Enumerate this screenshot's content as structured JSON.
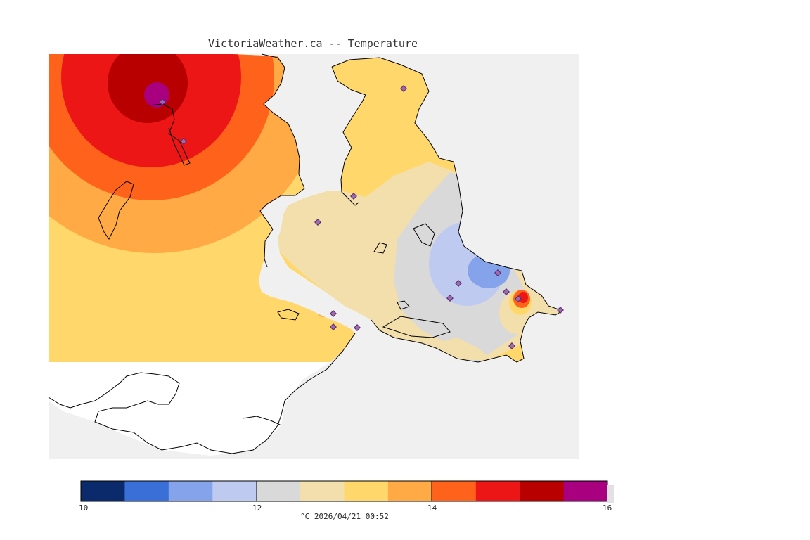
{
  "title": "VictoriaWeather.ca -- Temperature",
  "legend": {
    "min": 10,
    "max": 16,
    "tick_labels": [
      "10",
      "12",
      "14",
      "16"
    ],
    "units_label": "°C  2026/04/21 00:52",
    "bins": [
      {
        "from": 10.0,
        "to": 10.5,
        "color": "#0b2a6b"
      },
      {
        "from": 10.5,
        "to": 11.0,
        "color": "#3a6fd8"
      },
      {
        "from": 11.0,
        "to": 11.5,
        "color": "#85a3ea"
      },
      {
        "from": 11.5,
        "to": 12.0,
        "color": "#bfcaf0"
      },
      {
        "from": 12.0,
        "to": 12.5,
        "color": "#d9d9d9"
      },
      {
        "from": 12.5,
        "to": 13.0,
        "color": "#f3dfac"
      },
      {
        "from": 13.0,
        "to": 13.5,
        "color": "#ffd76a"
      },
      {
        "from": 13.5,
        "to": 14.0,
        "color": "#ffaa45"
      },
      {
        "from": 14.0,
        "to": 14.5,
        "color": "#ff621b"
      },
      {
        "from": 14.5,
        "to": 15.0,
        "color": "#ed1616"
      },
      {
        "from": 15.0,
        "to": 15.5,
        "color": "#b80000"
      },
      {
        "from": 15.5,
        "to": 16.0,
        "color": "#a8007f"
      }
    ]
  },
  "colors": {
    "background": "#f0f0f0",
    "outside_data": "#ffffff",
    "coastline": "#000000",
    "station_marker": "#9a6bb0"
  }
}
